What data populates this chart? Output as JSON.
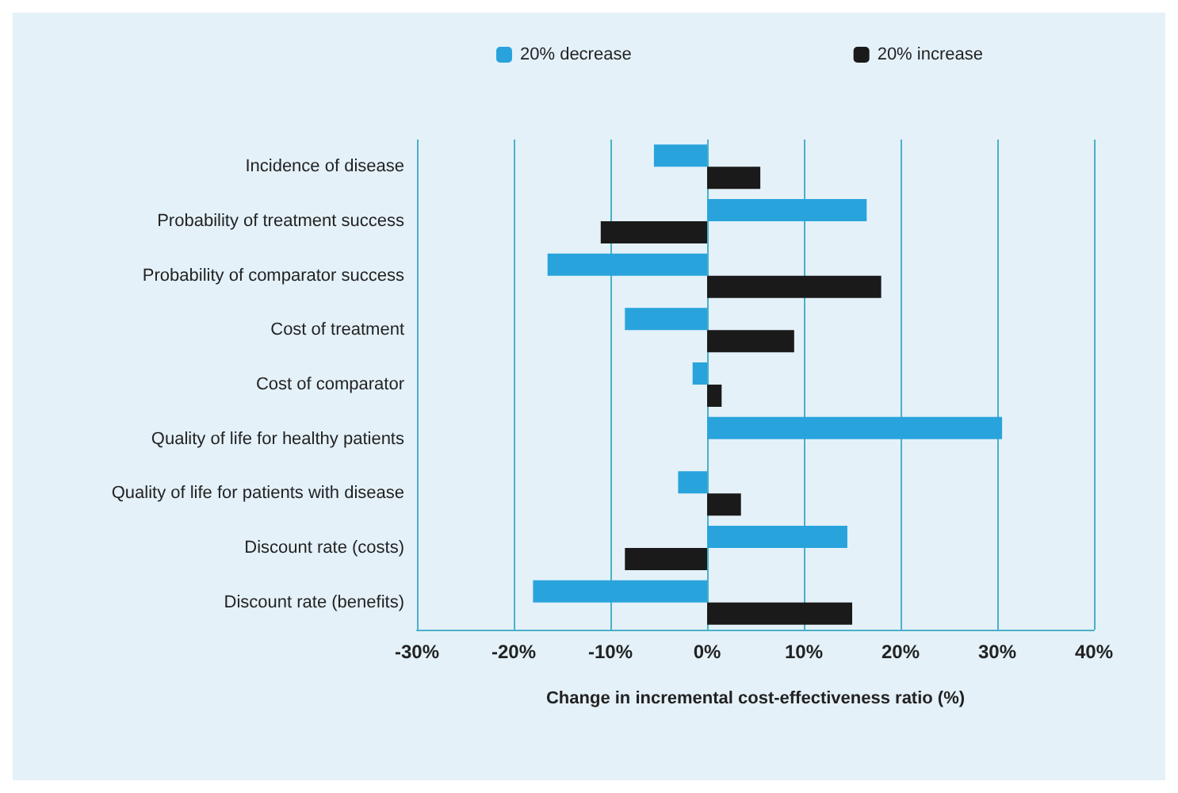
{
  "chart_data": {
    "type": "bar",
    "orientation": "horizontal",
    "xlabel": "Change in incremental cost-effectiveness ratio (%)",
    "categories": [
      "Incidence of disease",
      "Probability of treatment success",
      "Probability of comparator success",
      "Cost of treatment",
      "Cost of comparator",
      "Quality of life for healthy patients",
      "Quality of life for patients with disease",
      "Discount rate (costs)",
      "Discount rate (benefits)"
    ],
    "series": [
      {
        "name": "20% decrease",
        "color": "#29a3dc",
        "values": [
          -5.5,
          16.5,
          -16.5,
          -8.5,
          -1.5,
          30.5,
          -3,
          14.5,
          -18
        ]
      },
      {
        "name": "20% increase",
        "color": "#1a1a1a",
        "values": [
          5.5,
          -11,
          18,
          9,
          1.5,
          null,
          3.5,
          -8.5,
          15
        ]
      }
    ],
    "xlim": [
      -30,
      40
    ],
    "xticks": [
      {
        "value": -30,
        "label": "-30%"
      },
      {
        "value": -20,
        "label": "-20%"
      },
      {
        "value": -10,
        "label": "-10%"
      },
      {
        "value": 0,
        "label": "0%"
      },
      {
        "value": 10,
        "label": "10%"
      },
      {
        "value": 20,
        "label": "20%"
      },
      {
        "value": 30,
        "label": "30%"
      },
      {
        "value": 40,
        "label": "40%"
      }
    ],
    "grid": "x",
    "legend": "top"
  }
}
